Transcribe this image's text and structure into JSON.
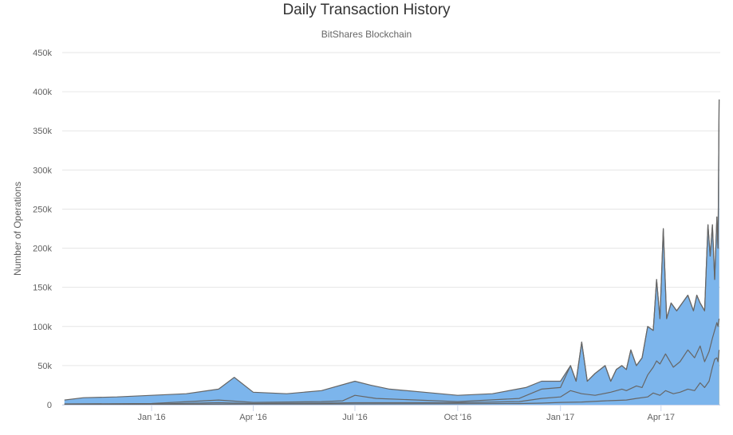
{
  "chart_data": {
    "type": "area",
    "stacked": true,
    "title": "Daily Transaction History",
    "subtitle": "BitShares Blockchain",
    "ylabel": "Number of Operations",
    "xlabel": "",
    "ylim": [
      0,
      450000
    ],
    "yticks": [
      0,
      50000,
      100000,
      150000,
      200000,
      250000,
      300000,
      350000,
      400000,
      450000
    ],
    "ytick_labels": [
      "0",
      "50k",
      "100k",
      "150k",
      "200k",
      "250k",
      "300k",
      "350k",
      "400k",
      "450k"
    ],
    "xlim": [
      "2015-10-13",
      "2017-05-24"
    ],
    "xticks": [
      "2016-01-01",
      "2016-04-01",
      "2016-07-01",
      "2016-10-01",
      "2017-01-01",
      "2017-04-01"
    ],
    "xtick_labels": [
      "Jan '16",
      "Apr '16",
      "Jul '16",
      "Oct '16",
      "Jan '17",
      "Apr '17"
    ],
    "grid": "horizontal",
    "series": [
      {
        "color": "#f7a35c",
        "points": [
          [
            "2015-10-15",
            300
          ],
          [
            "2016-01-01",
            500
          ],
          [
            "2016-04-01",
            800
          ],
          [
            "2016-07-01",
            1000
          ],
          [
            "2016-10-01",
            1200
          ],
          [
            "2016-11-25",
            1500
          ],
          [
            "2016-12-15",
            2000
          ],
          [
            "2017-01-01",
            3000
          ],
          [
            "2017-01-20",
            3500
          ],
          [
            "2017-02-10",
            5000
          ],
          [
            "2017-03-01",
            6000
          ],
          [
            "2017-03-10",
            8000
          ],
          [
            "2017-03-20",
            10000
          ],
          [
            "2017-03-25",
            15000
          ],
          [
            "2017-03-31",
            12000
          ],
          [
            "2017-04-05",
            18000
          ],
          [
            "2017-04-12",
            14000
          ],
          [
            "2017-04-18",
            16000
          ],
          [
            "2017-04-25",
            20000
          ],
          [
            "2017-05-01",
            18000
          ],
          [
            "2017-05-06",
            28000
          ],
          [
            "2017-05-10",
            22000
          ],
          [
            "2017-05-14",
            30000
          ],
          [
            "2017-05-17",
            48000
          ],
          [
            "2017-05-19",
            58000
          ],
          [
            "2017-05-21",
            60000
          ],
          [
            "2017-05-22",
            55000
          ],
          [
            "2017-05-23",
            70000
          ]
        ]
      },
      {
        "color": "#90ed7d",
        "points": [
          [
            "2015-10-15",
            500
          ],
          [
            "2016-01-01",
            800
          ],
          [
            "2016-03-01",
            2500
          ],
          [
            "2016-04-01",
            1500
          ],
          [
            "2016-06-01",
            2000
          ],
          [
            "2016-07-01",
            2500
          ],
          [
            "2016-10-01",
            2500
          ],
          [
            "2016-11-25",
            4000
          ],
          [
            "2016-12-15",
            8000
          ],
          [
            "2017-01-01",
            10000
          ],
          [
            "2017-01-10",
            18000
          ],
          [
            "2017-01-20",
            14000
          ],
          [
            "2017-02-01",
            12000
          ],
          [
            "2017-02-15",
            16000
          ],
          [
            "2017-02-25",
            20000
          ],
          [
            "2017-03-01",
            18000
          ],
          [
            "2017-03-10",
            24000
          ],
          [
            "2017-03-15",
            22000
          ],
          [
            "2017-03-20",
            38000
          ],
          [
            "2017-03-25",
            48000
          ],
          [
            "2017-03-28",
            56000
          ],
          [
            "2017-03-31",
            52000
          ],
          [
            "2017-04-05",
            65000
          ],
          [
            "2017-04-12",
            48000
          ],
          [
            "2017-04-18",
            55000
          ],
          [
            "2017-04-25",
            70000
          ],
          [
            "2017-05-01",
            60000
          ],
          [
            "2017-05-06",
            75000
          ],
          [
            "2017-05-10",
            55000
          ],
          [
            "2017-05-14",
            68000
          ],
          [
            "2017-05-17",
            85000
          ],
          [
            "2017-05-19",
            95000
          ],
          [
            "2017-05-21",
            105000
          ],
          [
            "2017-05-22",
            100000
          ],
          [
            "2017-05-23",
            110000
          ]
        ]
      },
      {
        "color": "#434348",
        "points": [
          [
            "2015-10-15",
            1000
          ],
          [
            "2016-01-01",
            1500
          ],
          [
            "2016-03-01",
            6000
          ],
          [
            "2016-04-01",
            3000
          ],
          [
            "2016-06-01",
            4000
          ],
          [
            "2016-06-20",
            5000
          ],
          [
            "2016-07-01",
            12000
          ],
          [
            "2016-07-20",
            8000
          ],
          [
            "2016-10-01",
            4000
          ],
          [
            "2016-11-25",
            8000
          ],
          [
            "2016-12-15",
            20000
          ],
          [
            "2017-01-01",
            22000
          ],
          [
            "2017-01-10",
            50000
          ],
          [
            "2017-01-15",
            30000
          ],
          [
            "2017-01-20",
            80000
          ],
          [
            "2017-01-25",
            30000
          ],
          [
            "2017-02-01",
            40000
          ],
          [
            "2017-02-10",
            50000
          ],
          [
            "2017-02-15",
            30000
          ],
          [
            "2017-02-20",
            45000
          ],
          [
            "2017-02-25",
            50000
          ],
          [
            "2017-03-01",
            45000
          ],
          [
            "2017-03-05",
            70000
          ],
          [
            "2017-03-10",
            50000
          ],
          [
            "2017-03-15",
            60000
          ],
          [
            "2017-03-20",
            100000
          ],
          [
            "2017-03-25",
            95000
          ],
          [
            "2017-03-28",
            160000
          ],
          [
            "2017-03-31",
            110000
          ],
          [
            "2017-04-03",
            225000
          ],
          [
            "2017-04-06",
            110000
          ],
          [
            "2017-04-10",
            130000
          ],
          [
            "2017-04-15",
            120000
          ],
          [
            "2017-04-20",
            130000
          ],
          [
            "2017-04-25",
            140000
          ],
          [
            "2017-04-30",
            120000
          ],
          [
            "2017-05-03",
            140000
          ],
          [
            "2017-05-06",
            130000
          ],
          [
            "2017-05-10",
            120000
          ],
          [
            "2017-05-13",
            230000
          ],
          [
            "2017-05-15",
            190000
          ],
          [
            "2017-05-17",
            230000
          ],
          [
            "2017-05-19",
            160000
          ],
          [
            "2017-05-21",
            240000
          ],
          [
            "2017-05-22",
            200000
          ],
          [
            "2017-05-23",
            390000
          ]
        ]
      },
      {
        "color": "#7cb5ec",
        "points": [
          [
            "2015-10-15",
            6000
          ],
          [
            "2015-11-01",
            9000
          ],
          [
            "2015-12-01",
            10000
          ],
          [
            "2016-01-01",
            12000
          ],
          [
            "2016-02-01",
            14000
          ],
          [
            "2016-03-01",
            20000
          ],
          [
            "2016-03-15",
            35000
          ],
          [
            "2016-04-01",
            16000
          ],
          [
            "2016-05-01",
            14000
          ],
          [
            "2016-06-01",
            18000
          ],
          [
            "2016-07-01",
            30000
          ],
          [
            "2016-07-15",
            25000
          ],
          [
            "2016-08-01",
            20000
          ],
          [
            "2016-09-01",
            16000
          ],
          [
            "2016-10-01",
            12000
          ],
          [
            "2016-11-01",
            14000
          ],
          [
            "2016-12-01",
            22000
          ],
          [
            "2016-12-15",
            30000
          ],
          [
            "2017-01-01",
            30000
          ],
          [
            "2017-01-10",
            50000
          ],
          [
            "2017-01-15",
            30000
          ],
          [
            "2017-01-20",
            80000
          ],
          [
            "2017-01-25",
            30000
          ],
          [
            "2017-02-01",
            40000
          ],
          [
            "2017-02-10",
            50000
          ],
          [
            "2017-02-15",
            30000
          ],
          [
            "2017-02-20",
            45000
          ],
          [
            "2017-02-25",
            50000
          ],
          [
            "2017-03-01",
            45000
          ],
          [
            "2017-03-05",
            70000
          ],
          [
            "2017-03-10",
            50000
          ],
          [
            "2017-03-15",
            60000
          ],
          [
            "2017-03-20",
            100000
          ],
          [
            "2017-03-25",
            95000
          ],
          [
            "2017-03-28",
            160000
          ],
          [
            "2017-03-31",
            110000
          ],
          [
            "2017-04-03",
            225000
          ],
          [
            "2017-04-06",
            110000
          ],
          [
            "2017-04-10",
            130000
          ],
          [
            "2017-04-15",
            120000
          ],
          [
            "2017-04-20",
            130000
          ],
          [
            "2017-04-25",
            140000
          ],
          [
            "2017-04-30",
            120000
          ],
          [
            "2017-05-03",
            140000
          ],
          [
            "2017-05-06",
            130000
          ],
          [
            "2017-05-10",
            120000
          ],
          [
            "2017-05-13",
            230000
          ],
          [
            "2017-05-15",
            190000
          ],
          [
            "2017-05-17",
            230000
          ],
          [
            "2017-05-19",
            160000
          ],
          [
            "2017-05-21",
            240000
          ],
          [
            "2017-05-22",
            200000
          ],
          [
            "2017-05-23",
            390000
          ]
        ]
      }
    ]
  }
}
